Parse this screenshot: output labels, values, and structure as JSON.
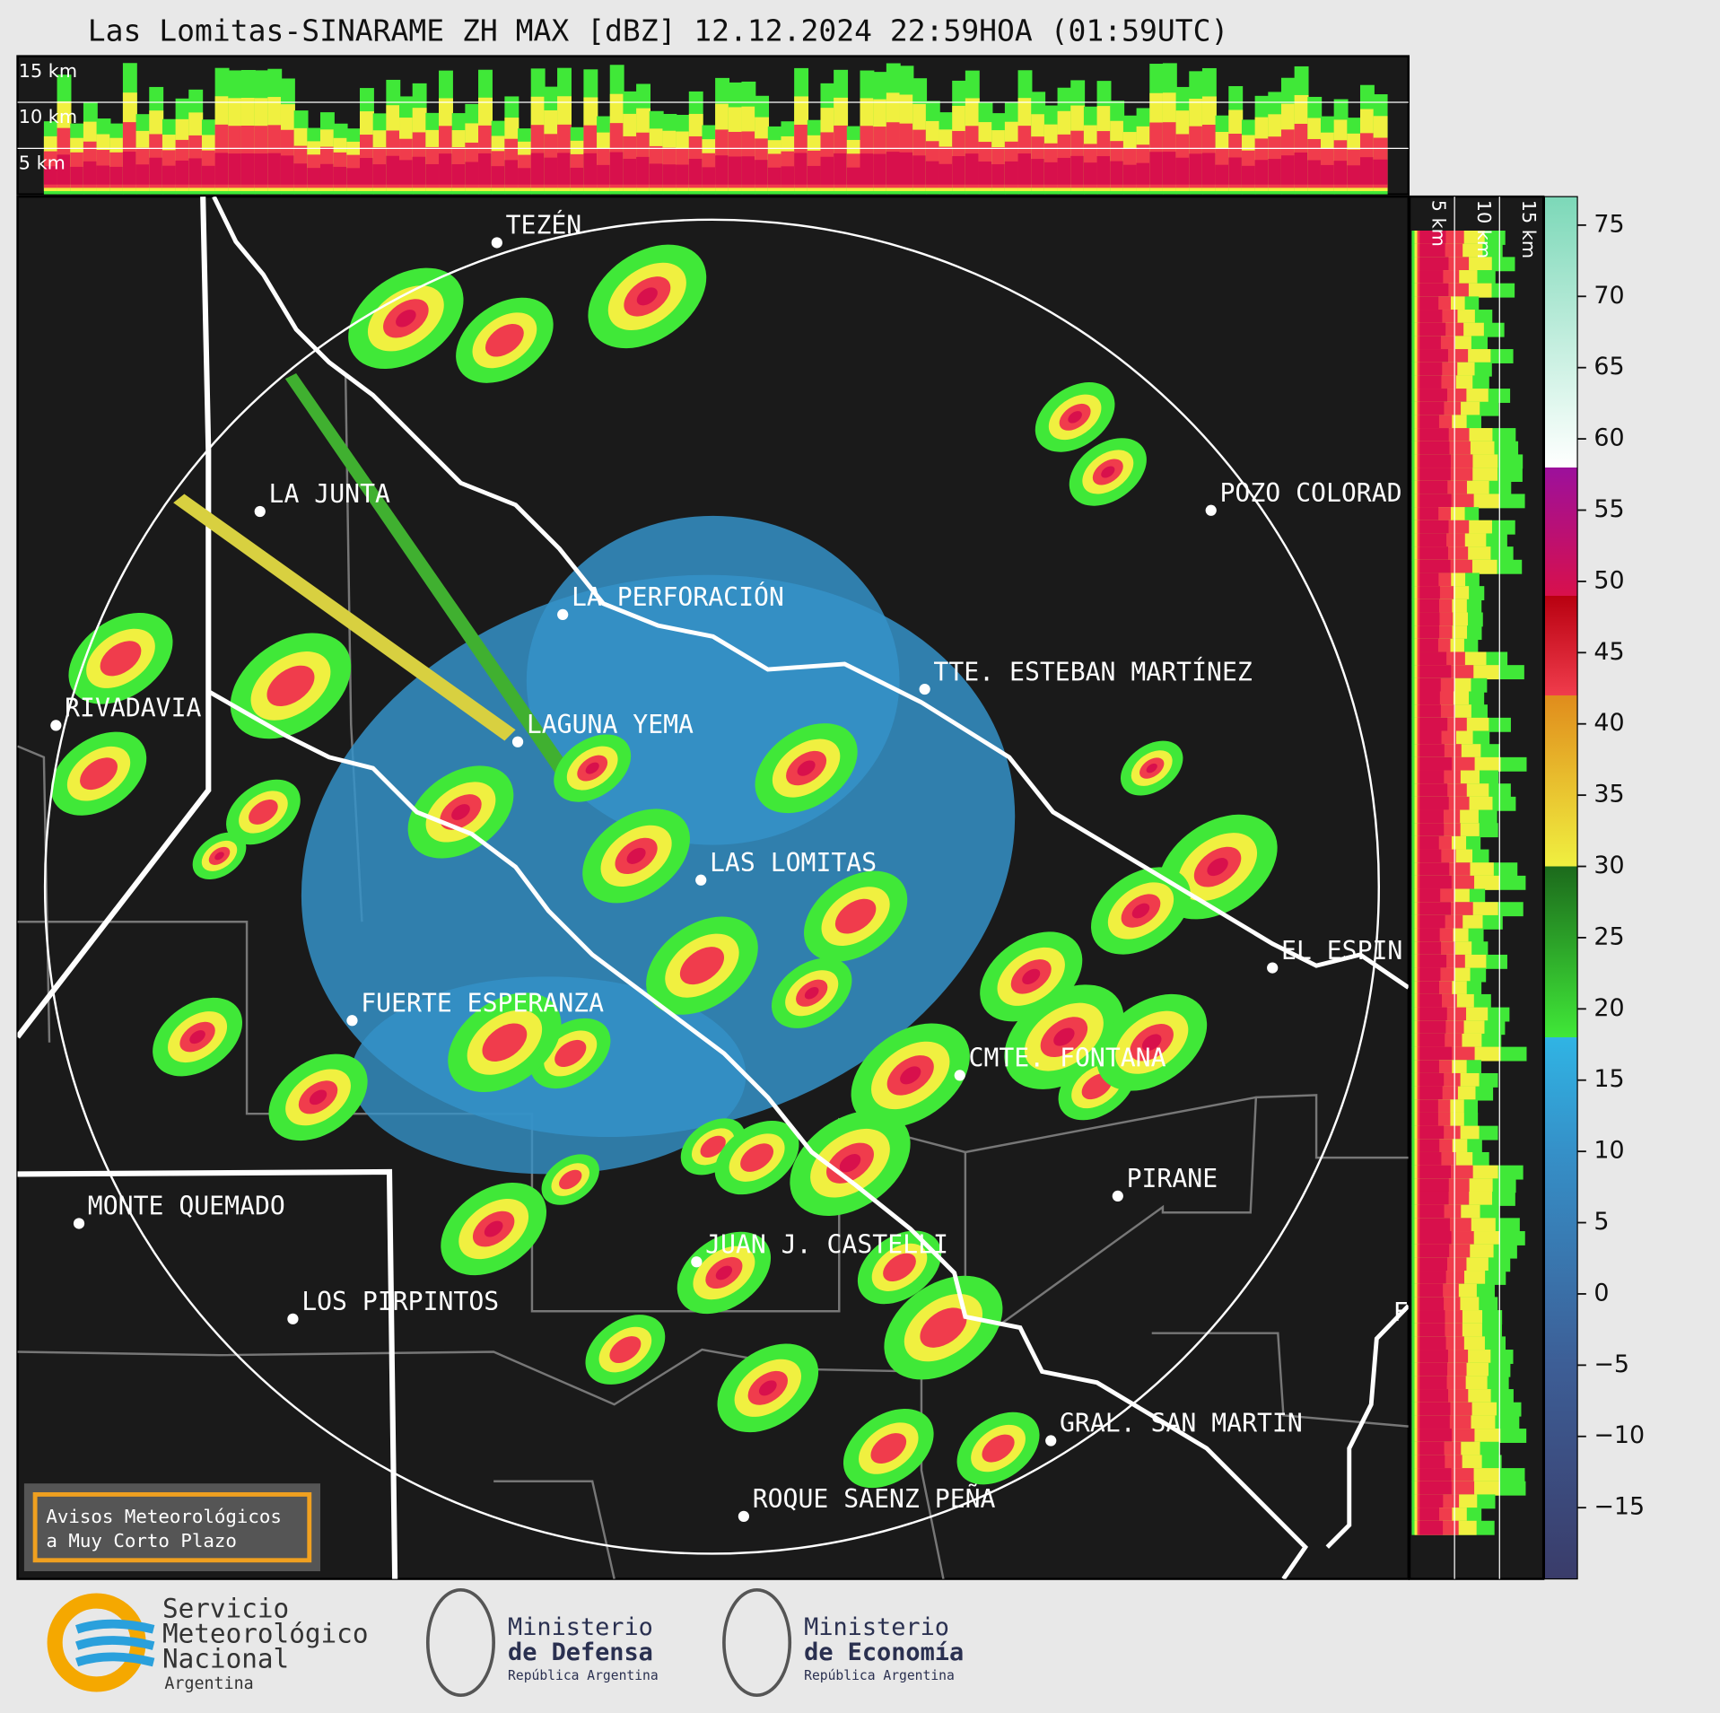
{
  "title": "Las Lomitas-SINARAME ZH MAX [dBZ] 12.12.2024 22:59HOA (01:59UTC)",
  "top_panel": {
    "heights": [
      "15 km",
      "10 km",
      "5 km"
    ]
  },
  "side_panel": {
    "heights": [
      "5 km",
      "10 km",
      "15 km"
    ]
  },
  "places": [
    "TEZÉN",
    "LA JUNTA",
    "POZO COLORAD",
    "LA PERFORACIÓN",
    "TTE. ESTEBAN MARTÍNEZ",
    "RIVADAVIA",
    "LAGUNA YEMA",
    "LAS LOMITAS",
    "EL ESPIN",
    "FUERTE ESPERANZA",
    "CMTE. FONTANA",
    "PIRANE",
    "MONTE QUEMADO",
    "JUAN J. CASTELLI",
    "LOS PIRPINTOS",
    "GRAL. SAN MARTIN",
    "ROQUE SAENZ PEÑA",
    "F"
  ],
  "notice": [
    "Avisos Meteorológicos",
    "a Muy Corto Plazo"
  ],
  "colorbar": {
    "lim": [
      -20,
      77
    ],
    "ticks": [
      75,
      70,
      65,
      60,
      55,
      50,
      45,
      40,
      35,
      30,
      25,
      20,
      15,
      10,
      5,
      0,
      {
        "value": -5,
        "label": "−5"
      },
      {
        "value": -10,
        "label": "−10"
      },
      {
        "value": -15,
        "label": "−15"
      }
    ],
    "stops": [
      {
        "value": -20,
        "color": "#3a3c6a"
      },
      {
        "value": -5,
        "color": "#3d5e96"
      },
      {
        "value": 10,
        "color": "#3590c8"
      },
      {
        "value": 18,
        "color": "#30b4e4"
      },
      {
        "value": 18,
        "color": "#40e838"
      },
      {
        "value": 30,
        "color": "#1c6a1c"
      },
      {
        "value": 30,
        "color": "#f0f040"
      },
      {
        "value": 42,
        "color": "#e08c1c"
      },
      {
        "value": 42,
        "color": "#f03c4c"
      },
      {
        "value": 49,
        "color": "#b80010"
      },
      {
        "value": 49,
        "color": "#d8104c"
      },
      {
        "value": 58,
        "color": "#9c109c"
      },
      {
        "value": 58,
        "color": "#ffffff"
      },
      {
        "value": 62,
        "color": "#e4f8f0"
      },
      {
        "value": 77,
        "color": "#7cd8b8"
      }
    ]
  },
  "logos": [
    {
      "lines": [
        "Servicio",
        "Meteorológico",
        "Nacional",
        "Argentina"
      ]
    },
    {
      "lines": [
        "Ministerio",
        "de Defensa",
        "República Argentina"
      ]
    },
    {
      "lines": [
        "Ministerio",
        "de Economía",
        "República Argentina"
      ]
    }
  ]
}
